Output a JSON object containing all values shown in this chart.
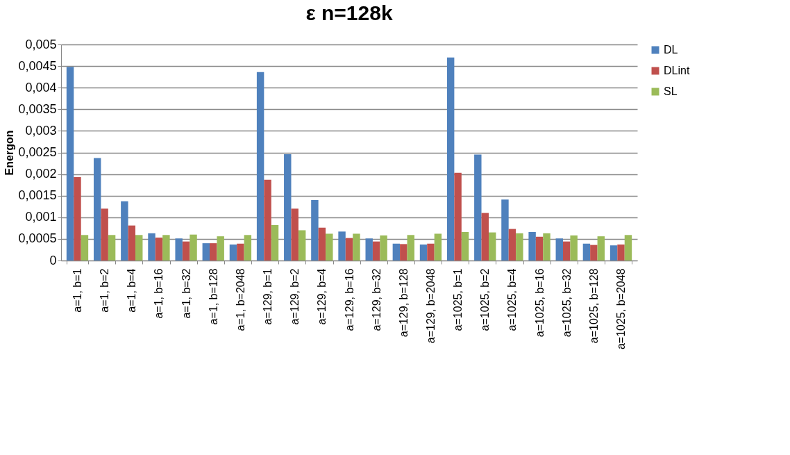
{
  "chart_data": {
    "type": "bar",
    "title": "ε n=128k",
    "ylabel": "Energon",
    "categories": [
      "a=1, b=1",
      "a=1, b=2",
      "a=1, b=4",
      "a=1, b=16",
      "a=1, b=32",
      "a=1, b=128",
      "a=1, b=2048",
      "a=129, b=1",
      "a=129, b=2",
      "a=129, b=4",
      "a=129, b=16",
      "a=129, b=32",
      "a=129, b=128",
      "a=129, b=2048",
      "a=1025, b=1",
      "a=1025, b=2",
      "a=1025, b=4",
      "a=1025, b=16",
      "a=1025, b=32",
      "a=1025, b=128",
      "a=1025, b=2048"
    ],
    "series": [
      {
        "name": "DL",
        "color": "#4f81bd",
        "values": [
          0.00448,
          0.00237,
          0.00137,
          0.00063,
          0.00051,
          0.0004,
          0.00037,
          0.00436,
          0.00246,
          0.0014,
          0.00067,
          0.00051,
          0.00039,
          0.00037,
          0.0047,
          0.00245,
          0.00141,
          0.00066,
          0.00051,
          0.00039,
          0.00035
        ]
      },
      {
        "name": "DLint",
        "color": "#c0504d",
        "values": [
          0.00193,
          0.0012,
          0.00081,
          0.00053,
          0.00044,
          0.0004,
          0.00039,
          0.00187,
          0.0012,
          0.00076,
          0.00052,
          0.00044,
          0.00038,
          0.00039,
          0.00203,
          0.0011,
          0.00073,
          0.00055,
          0.00044,
          0.00036,
          0.00037
        ]
      },
      {
        "name": "SL",
        "color": "#9bbb59",
        "values": [
          0.00059,
          0.00059,
          0.00059,
          0.00059,
          0.0006,
          0.00056,
          0.00059,
          0.00082,
          0.0007,
          0.00062,
          0.00062,
          0.00058,
          0.00059,
          0.00062,
          0.00066,
          0.00065,
          0.00063,
          0.00063,
          0.00058,
          0.00056,
          0.00059
        ]
      }
    ],
    "ylim": [
      0,
      0.005
    ],
    "yticks": [
      {
        "value": 0,
        "label": "0"
      },
      {
        "value": 0.0005,
        "label": "0,0005"
      },
      {
        "value": 0.001,
        "label": "0,001"
      },
      {
        "value": 0.0015,
        "label": "0,0015"
      },
      {
        "value": 0.002,
        "label": "0,002"
      },
      {
        "value": 0.0025,
        "label": "0,0025"
      },
      {
        "value": 0.003,
        "label": "0,003"
      },
      {
        "value": 0.0035,
        "label": "0,0035"
      },
      {
        "value": 0.004,
        "label": "0,004"
      },
      {
        "value": 0.0045,
        "label": "0,0045"
      },
      {
        "value": 0.005,
        "label": "0,005"
      }
    ],
    "grid": "y",
    "legend": "right"
  }
}
